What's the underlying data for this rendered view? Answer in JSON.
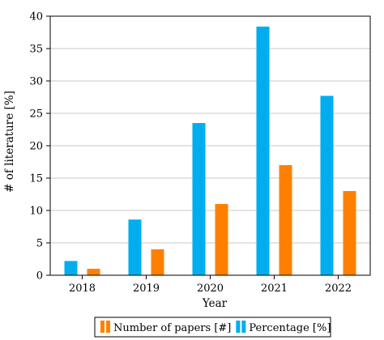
{
  "chart_data": {
    "type": "bar",
    "title": "",
    "xlabel": "Year",
    "ylabel": "# of literature [%]",
    "categories": [
      "2018",
      "2019",
      "2020",
      "2021",
      "2022"
    ],
    "series": [
      {
        "name": "Percentage [%]",
        "color": "#00aeef",
        "values": [
          2.2,
          8.6,
          23.5,
          38.4,
          27.7
        ]
      },
      {
        "name": "Number of papers [#]",
        "color": "#ff8000",
        "values": [
          1,
          4,
          11,
          17,
          13
        ]
      }
    ],
    "ylim": [
      0,
      40
    ],
    "yticks": [
      0,
      5,
      10,
      15,
      20,
      25,
      30,
      35,
      40
    ],
    "grid": "horizontal",
    "legend_position": "bottom"
  }
}
